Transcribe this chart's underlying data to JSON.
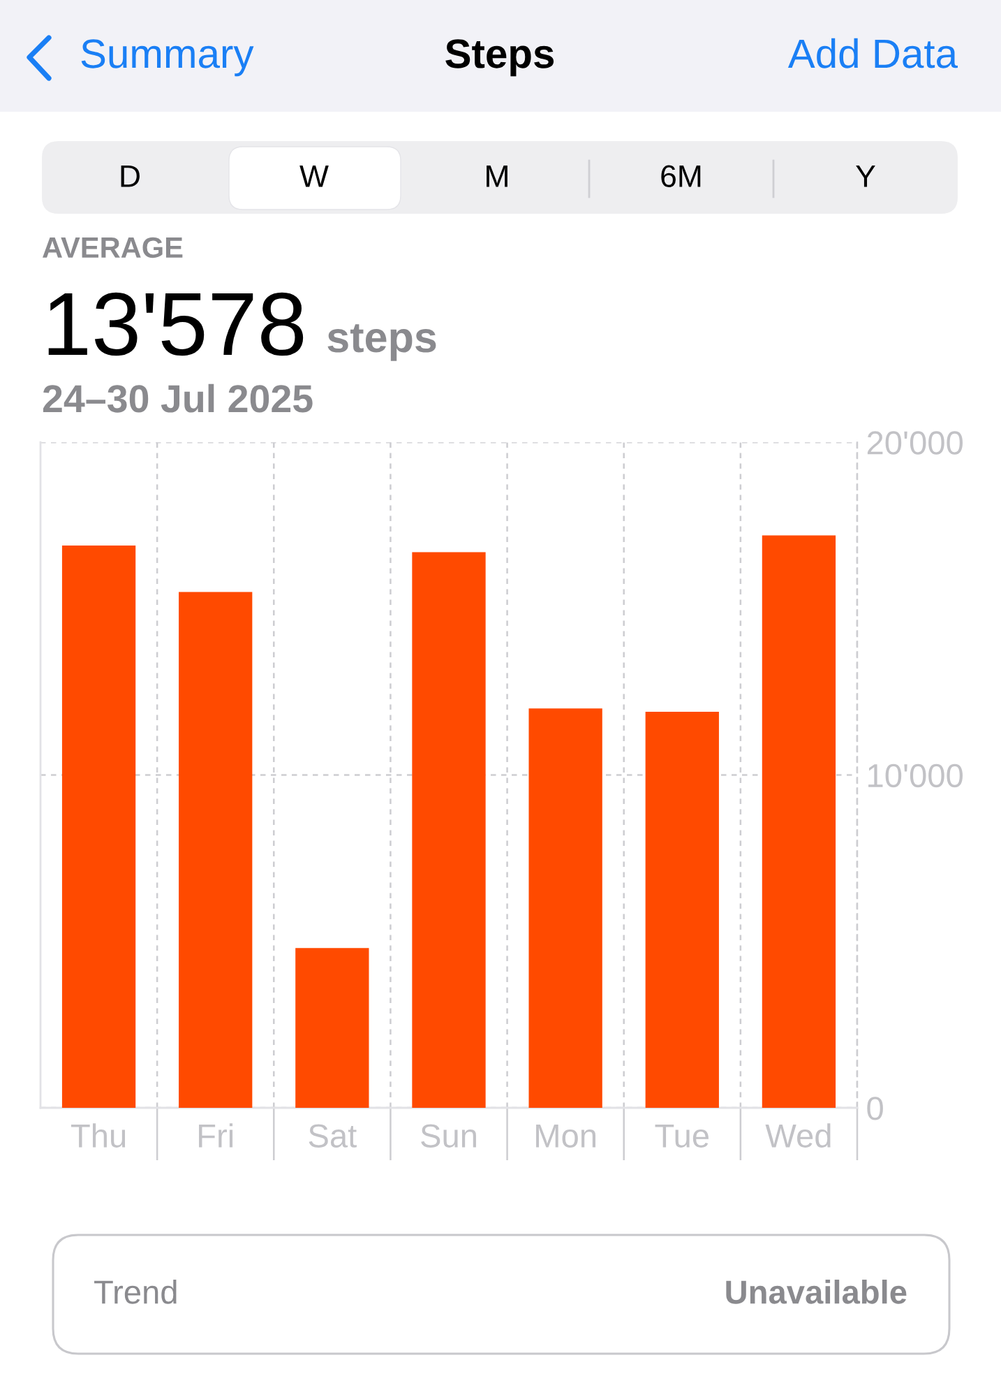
{
  "chart_data": {
    "type": "bar",
    "title": "Steps",
    "annotations": [
      "Summary",
      "Add Data",
      "D",
      "W",
      "M",
      "6M",
      "Y",
      "AVERAGE",
      "13'578",
      "steps",
      "24–30 Jul 2025",
      "Trend",
      "Unavailable"
    ],
    "categories": [
      "Thu",
      "Fri",
      "Sat",
      "Sun",
      "Mon",
      "Tue",
      "Wed"
    ],
    "values": [
      16900,
      15500,
      4800,
      16700,
      12000,
      11900,
      17200
    ],
    "color": "#ff4a00",
    "ylim": [
      0,
      20000
    ],
    "yticks": [
      0,
      {
        "value": 10000,
        "label": "10'000"
      },
      {
        "value": 20000,
        "label": "20'000"
      }
    ],
    "grid": true,
    "legend": false
  }
}
